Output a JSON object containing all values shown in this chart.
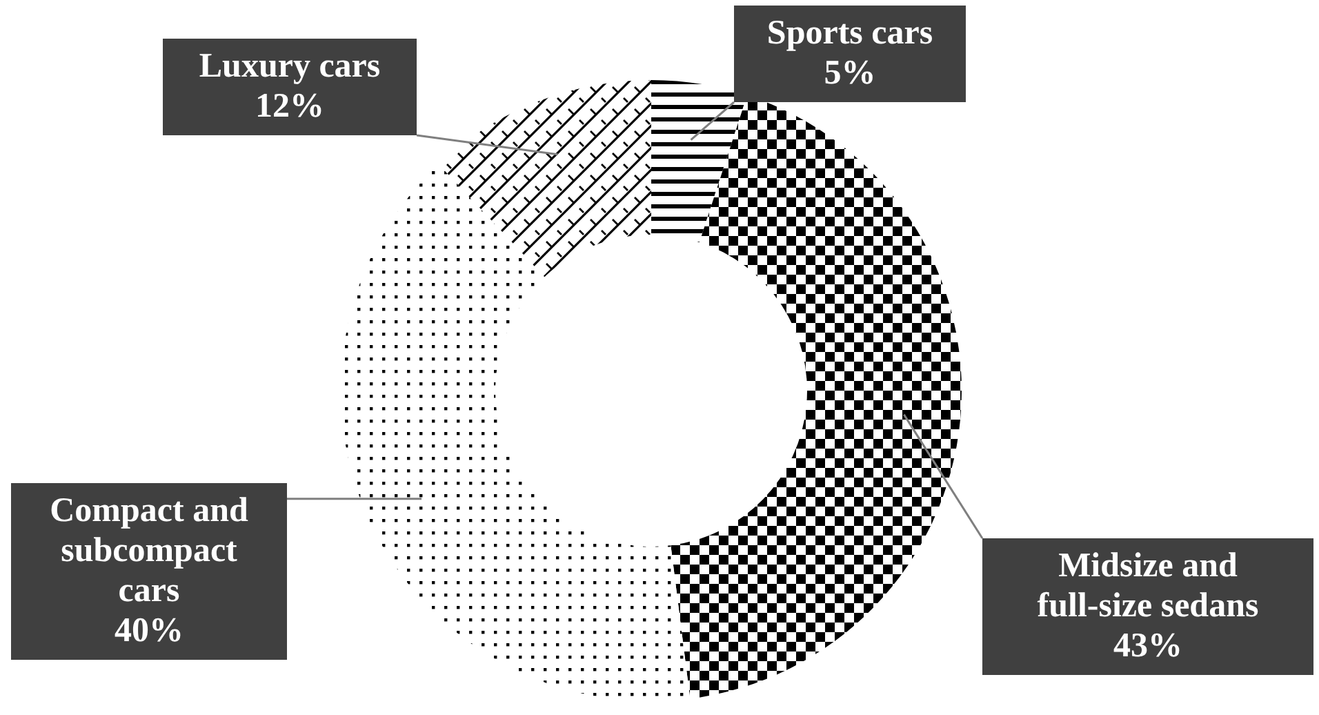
{
  "chart_data": {
    "type": "donut",
    "categories": [
      "Sports cars",
      "Midsize and full-size sedans",
      "Compact and subcompact cars",
      "Luxury cars"
    ],
    "values": [
      5,
      43,
      40,
      12
    ],
    "value_labels": [
      "5%",
      "43%",
      "40%",
      "12%"
    ],
    "colors": [
      "#000000",
      "#000000",
      "#000000",
      "#000000"
    ]
  }
}
